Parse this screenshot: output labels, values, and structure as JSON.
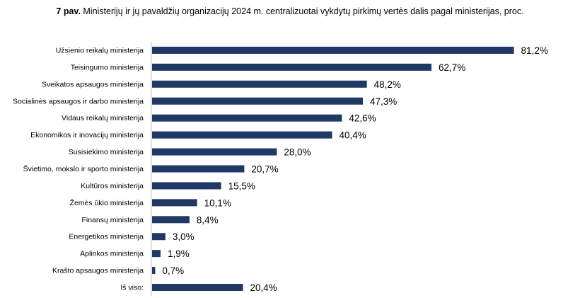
{
  "title": {
    "lead": "7 pav.",
    "text": " Ministerijų ir jų pavaldžių organizacijų 2024 m. centralizuotai vykdytų pirkimų vertės dalis pagal ministerijas, proc."
  },
  "colors": {
    "bar": "#1f3864",
    "axis": "#bfbfbf"
  },
  "chart_data": {
    "type": "bar",
    "orientation": "horizontal",
    "title": "7 pav. Ministerijų ir jų pavaldžių organizacijų 2024 m. centralizuotai vykdytų pirkimų vertės dalis pagal ministerijas, proc.",
    "xlim": [
      0,
      85
    ],
    "grid": false,
    "legend": "none",
    "categories": [
      "Užsienio reikalų ministerija",
      "Teisingumo ministerija",
      "Sveikatos apsaugos ministerija",
      "Socialinės apsaugos ir darbo ministerija",
      "Vidaus reikalų ministerija",
      "Ekonomikos ir inovacijų ministerija",
      "Susisiekimo ministerija",
      "Švietimo, mokslo ir sporto ministerija",
      "Kultūros ministerija",
      "Žemės ūkio ministerija",
      "Finansų ministerija",
      "Energetikos ministerija",
      "Aplinkos ministerija",
      "Krašto apsaugos ministerija",
      "Iš viso:"
    ],
    "values": [
      81.2,
      62.7,
      48.2,
      47.3,
      42.6,
      40.4,
      28.0,
      20.7,
      15.5,
      10.1,
      8.4,
      3.0,
      1.9,
      0.7,
      20.4
    ],
    "labels": [
      "81,2%",
      "62,7%",
      "48,2%",
      "47,3%",
      "42,6%",
      "40,4%",
      "28,0%",
      "20,7%",
      "15,5%",
      "10,1%",
      "8,4%",
      "3,0%",
      "1,9%",
      "0,7%",
      "20,4%"
    ]
  }
}
